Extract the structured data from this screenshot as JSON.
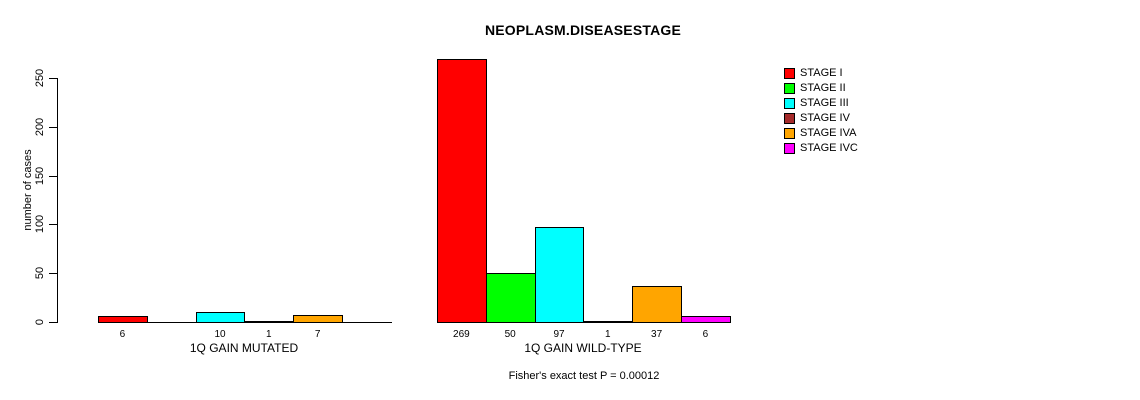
{
  "chart_data": {
    "type": "bar",
    "title": "NEOPLASM.DISEASESTAGE",
    "ylabel": "number of cases",
    "xlabel": "",
    "ylim": [
      0,
      250
    ],
    "yticks": [
      0,
      50,
      100,
      150,
      200,
      250
    ],
    "grid": false,
    "legend_position": "right",
    "categories": [
      "1Q GAIN MUTATED",
      "1Q GAIN WILD-TYPE"
    ],
    "series": [
      {
        "name": "STAGE I",
        "color": "#FF0000",
        "values": [
          6,
          269
        ]
      },
      {
        "name": "STAGE II",
        "color": "#00FF00",
        "values": [
          0,
          50
        ]
      },
      {
        "name": "STAGE III",
        "color": "#00FFFF",
        "values": [
          10,
          97
        ]
      },
      {
        "name": "STAGE IV",
        "color": "#A52A2A",
        "values": [
          1,
          1
        ]
      },
      {
        "name": "STAGE IVA",
        "color": "#FFA500",
        "values": [
          7,
          37
        ]
      },
      {
        "name": "STAGE IVC",
        "color": "#FF00FF",
        "values": [
          0,
          6
        ]
      }
    ],
    "bar_value_labels_shown_for_nonzero_only": true,
    "annotation": "Fisher's exact test P = 0.00012"
  }
}
